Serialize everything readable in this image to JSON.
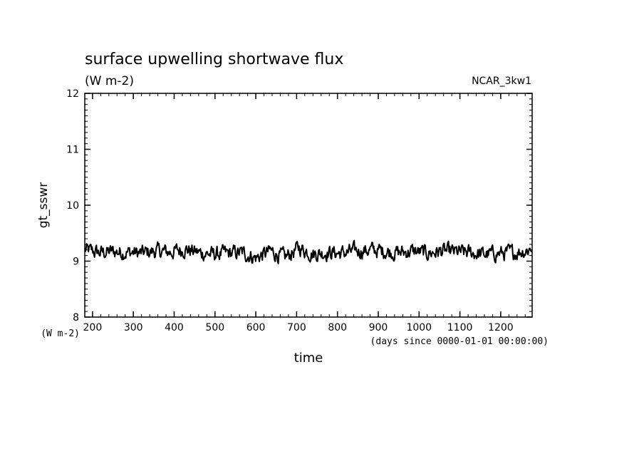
{
  "chart_data": {
    "type": "line",
    "title": "surface upwelling shortwave flux",
    "subtitle": "(W m-2)",
    "source_label": "NCAR_3kw1",
    "xlabel": "time",
    "xunits": "(days since 0000-01-01 00:00:00)",
    "ylabel": "gt_sswr",
    "yunits": "(W m-2)",
    "xlim": [
      181,
      1277
    ],
    "ylim": [
      8,
      12
    ],
    "x_ticks": [
      200,
      300,
      400,
      500,
      600,
      700,
      800,
      900,
      1000,
      1100,
      1200
    ],
    "x_tick_labels": [
      "200",
      "300",
      "400",
      "500",
      "600",
      "700",
      "800",
      "900",
      "1000",
      "1100",
      "1200"
    ],
    "y_ticks": [
      8,
      9,
      10,
      11,
      12
    ],
    "y_tick_labels": [
      "8",
      "9",
      "10",
      "11",
      "12"
    ],
    "grid": false,
    "series": [
      {
        "x": [
          181,
          216,
          251,
          286,
          321,
          356,
          391,
          426,
          461,
          496,
          531,
          566,
          601,
          636,
          671,
          706,
          741,
          776,
          811,
          846,
          881,
          916,
          951,
          986,
          1021,
          1056,
          1091,
          1126,
          1161,
          1196,
          1231,
          1266,
          1277
        ],
        "y": [
          9.2,
          9.15,
          9.17,
          9.16,
          9.14,
          9.18,
          9.16,
          9.22,
          9.15,
          9.12,
          9.14,
          9.15,
          9.06,
          9.18,
          9.06,
          9.24,
          9.13,
          9.16,
          9.14,
          9.18,
          9.2,
          9.18,
          9.15,
          9.18,
          9.14,
          9.18,
          9.16,
          9.15,
          9.12,
          9.14,
          9.15,
          9.2,
          9.26
        ]
      }
    ]
  }
}
